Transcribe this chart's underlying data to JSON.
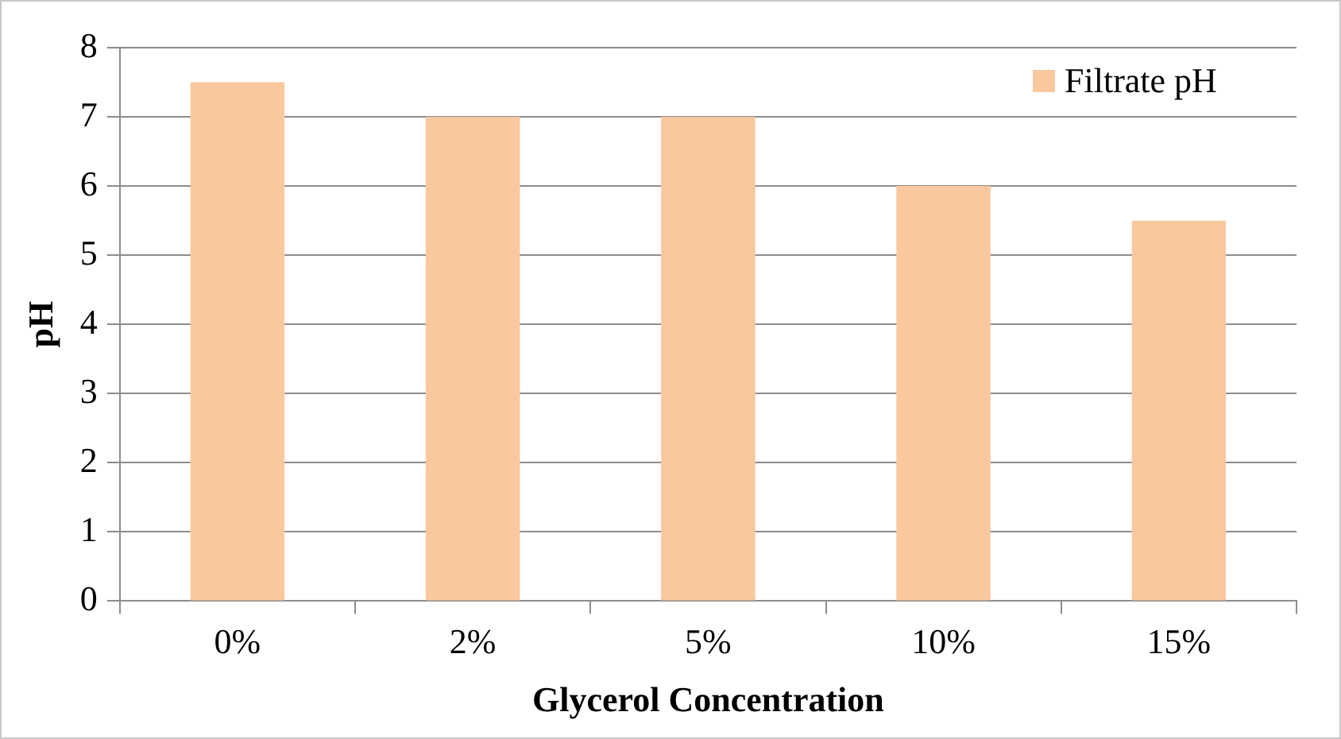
{
  "chart_data": {
    "type": "bar",
    "xlabel": "Glycerol Concentration",
    "ylabel": "pH",
    "categories": [
      "0%",
      "2%",
      "5%",
      "10%",
      "15%"
    ],
    "series": [
      {
        "name": "Filtrate pH",
        "color": "#fac89e",
        "values": [
          7.5,
          7,
          7,
          6,
          5.5
        ]
      }
    ],
    "ylim": [
      0,
      8
    ],
    "yticks": [
      0,
      1,
      2,
      3,
      4,
      5,
      6,
      7,
      8
    ],
    "grid": "y",
    "legend": "top right"
  }
}
